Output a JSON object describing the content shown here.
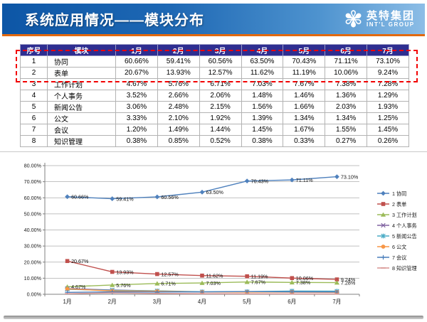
{
  "header": {
    "title": "系统应用情况——模块分布",
    "logo": {
      "name": "英特集团",
      "subtitle": "INT'L GROUP"
    },
    "colors": {
      "gradient_left": "#0d56a6",
      "gradient_right": "#8cbde6",
      "accent_orange": "#e2690f"
    }
  },
  "table": {
    "columns": [
      "序号",
      "模块",
      "1月",
      "2月",
      "3月",
      "4月",
      "5月",
      "6月",
      "7月"
    ],
    "header_bg": "#2e2e91",
    "highlight_color": "#f20000",
    "rows": [
      {
        "index": "1",
        "module": "协同",
        "values": [
          "60.66%",
          "59.41%",
          "60.56%",
          "63.50%",
          "70.43%",
          "71.11%",
          "73.10%"
        ]
      },
      {
        "index": "2",
        "module": "表单",
        "values": [
          "20.67%",
          "13.93%",
          "12.57%",
          "11.62%",
          "11.19%",
          "10.06%",
          "9.24%"
        ]
      },
      {
        "index": "3",
        "module": "工作计划",
        "values": [
          "4.67%",
          "5.76%",
          "6.71%",
          "7.03%",
          "7.67%",
          "7.38%",
          "7.28%"
        ]
      },
      {
        "index": "4",
        "module": "个人事务",
        "values": [
          "3.52%",
          "2.66%",
          "2.06%",
          "1.48%",
          "1.46%",
          "1.36%",
          "1.29%"
        ]
      },
      {
        "index": "5",
        "module": "新闻公告",
        "values": [
          "3.06%",
          "2.48%",
          "2.15%",
          "1.56%",
          "1.66%",
          "2.03%",
          "1.93%"
        ]
      },
      {
        "index": "6",
        "module": "公文",
        "values": [
          "3.33%",
          "2.10%",
          "1.92%",
          "1.39%",
          "1.34%",
          "1.34%",
          "1.25%"
        ]
      },
      {
        "index": "7",
        "module": "会议",
        "values": [
          "1.20%",
          "1.49%",
          "1.44%",
          "1.45%",
          "1.67%",
          "1.55%",
          "1.45%"
        ]
      },
      {
        "index": "8",
        "module": "知识管理",
        "values": [
          "0.38%",
          "0.85%",
          "0.52%",
          "0.38%",
          "0.33%",
          "0.27%",
          "0.26%"
        ]
      }
    ]
  },
  "chart_data": {
    "type": "line",
    "categories": [
      "1月",
      "2月",
      "3月",
      "4月",
      "5月",
      "6月",
      "7月"
    ],
    "series": [
      {
        "name": "1 协同",
        "values": [
          60.66,
          59.41,
          60.56,
          63.5,
          70.43,
          71.11,
          73.1
        ],
        "color": "#4F81BD",
        "marker": "diamond",
        "labels": true
      },
      {
        "name": "2 表单",
        "values": [
          20.67,
          13.93,
          12.57,
          11.62,
          11.19,
          10.06,
          9.24
        ],
        "color": "#C0504D",
        "marker": "square",
        "labels": true
      },
      {
        "name": "3 工作计划",
        "values": [
          4.67,
          5.76,
          6.71,
          7.03,
          7.67,
          7.38,
          7.28
        ],
        "color": "#9BBB59",
        "marker": "triangle",
        "labels": true
      },
      {
        "name": "4 个人事务",
        "values": [
          3.52,
          2.66,
          2.06,
          1.48,
          1.46,
          1.36,
          1.29
        ],
        "color": "#8064A2",
        "marker": "x",
        "labels": false
      },
      {
        "name": "5 新闻公告",
        "values": [
          3.06,
          2.48,
          2.15,
          1.56,
          1.66,
          2.03,
          1.93
        ],
        "color": "#4BACC6",
        "marker": "asterisk",
        "labels": false
      },
      {
        "name": "6 公文",
        "values": [
          3.33,
          2.1,
          1.92,
          1.39,
          1.34,
          1.34,
          1.25
        ],
        "color": "#F79646",
        "marker": "circle",
        "labels": false
      },
      {
        "name": "7 会议",
        "values": [
          1.2,
          1.49,
          1.44,
          1.45,
          1.67,
          1.55,
          1.45
        ],
        "color": "#4A7EBB",
        "marker": "plus",
        "labels": false
      },
      {
        "name": "8 知识管理",
        "values": [
          0.38,
          0.85,
          0.52,
          0.38,
          0.33,
          0.27,
          0.26
        ],
        "color": "#D99694",
        "marker": "dash",
        "labels": false
      }
    ],
    "title": "",
    "xlabel": "",
    "ylabel": "",
    "ylim": [
      0,
      80
    ],
    "ytick_step": 10,
    "grid": true,
    "legend_position": "right",
    "axis_color": "#808080",
    "grid_color": "#adadad"
  }
}
